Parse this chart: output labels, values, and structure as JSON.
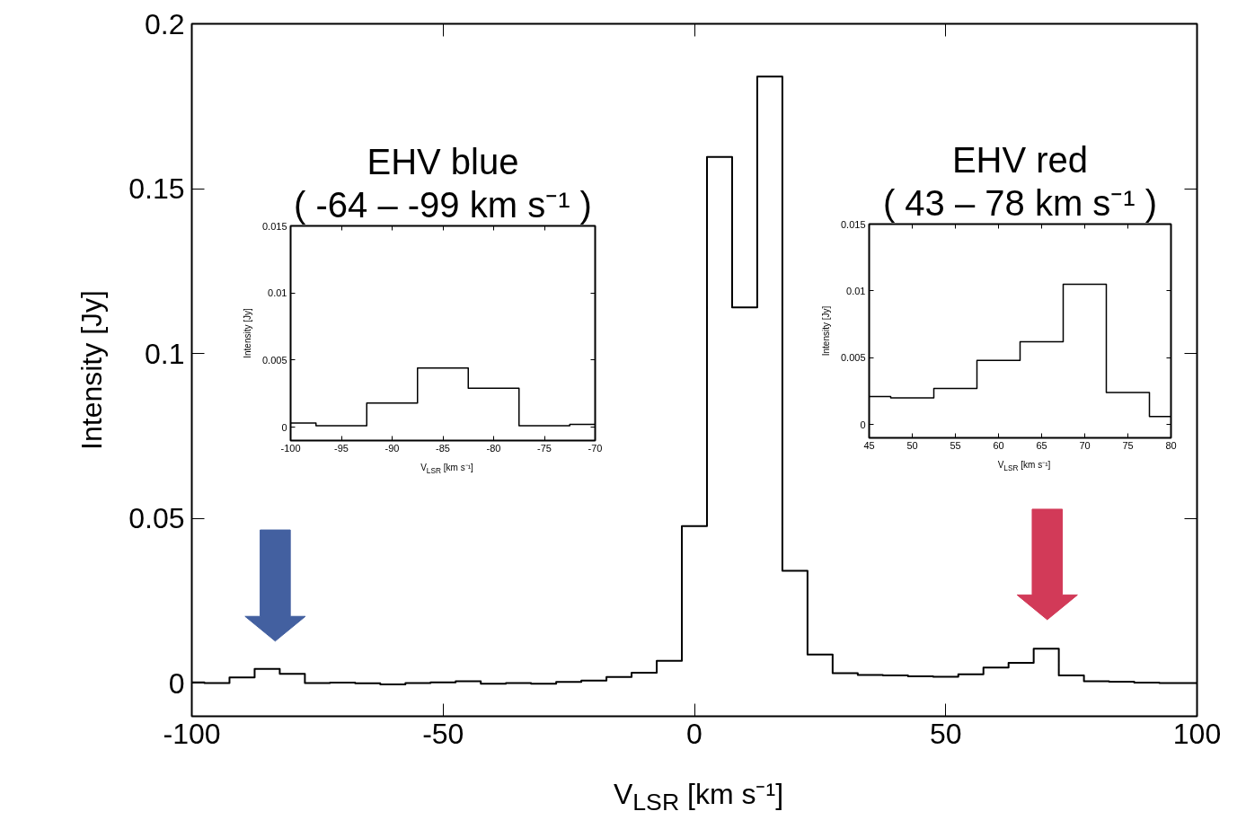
{
  "chart_data": [
    {
      "type": "step",
      "xlabel": "V$_{LSR}$ [km s⁻¹]",
      "ylabel": "Intensity [Jy]",
      "color": "#000000",
      "x": [
        -100,
        -95,
        -90,
        -85,
        -80,
        -75,
        -70,
        -65,
        -60,
        -55,
        -50,
        -45,
        -40,
        -35,
        -30,
        -25,
        -20,
        -15,
        -10,
        -5,
        0,
        5,
        10,
        15,
        20,
        25,
        30,
        35,
        40,
        45,
        50,
        55,
        60,
        65,
        70,
        75,
        80,
        85,
        90,
        95,
        100
      ],
      "values": [
        0.0003,
        0.0001,
        0.0018,
        0.0044,
        0.0029,
        0.0001,
        0.0002,
        0.0,
        -0.0003,
        0.0001,
        0.0003,
        0.0006,
        -0.0001,
        0.0001,
        -0.0001,
        0.0004,
        0.0008,
        0.0019,
        0.0032,
        0.0068,
        0.0477,
        0.1596,
        0.114,
        0.184,
        0.0341,
        0.0087,
        0.0031,
        0.0025,
        0.0024,
        0.0021,
        0.002,
        0.0027,
        0.0048,
        0.0062,
        0.0105,
        0.0024,
        0.0006,
        0.0005,
        0.0002,
        0.0001,
        0.0001
      ],
      "xlim": [
        -100,
        100
      ],
      "ylim": [
        -0.01,
        0.2
      ],
      "xticks": [
        -100,
        -50,
        0,
        50,
        100
      ],
      "yticks": [
        0,
        0.05,
        0.1,
        0.15,
        0.2
      ]
    },
    {
      "type": "step",
      "title": "EHV blue",
      "subtitle": "( -64 – -99 km s⁻¹ )",
      "xlabel": "V$_{LSR}$ [km s⁻¹]",
      "ylabel": "Intensity [Jy]",
      "color": "#000000",
      "x": [
        -100,
        -95,
        -90,
        -85,
        -80,
        -75,
        -70
      ],
      "values": [
        0.0003,
        0.0001,
        0.0018,
        0.0044,
        0.0029,
        0.0001,
        0.0002
      ],
      "xlim": [
        -100,
        -70
      ],
      "ylim": [
        -0.001,
        0.015
      ],
      "xticks": [
        -100,
        -95,
        -90,
        -85,
        -80,
        -75,
        -70
      ],
      "yticks": [
        0,
        0.005,
        0.01,
        0.015
      ]
    },
    {
      "type": "step",
      "title": "EHV red",
      "subtitle": "( 43 – 78 km s⁻¹ )",
      "xlabel": "V$_{LSR}$ [km s⁻¹]",
      "ylabel": "Intensity [Jy]",
      "color": "#000000",
      "x": [
        45,
        50,
        55,
        60,
        65,
        70,
        75,
        80
      ],
      "values": [
        0.0021,
        0.002,
        0.0027,
        0.0048,
        0.0062,
        0.0105,
        0.0024,
        0.0006
      ],
      "xlim": [
        45,
        80
      ],
      "ylim": [
        -0.001,
        0.015
      ],
      "xticks": [
        45,
        50,
        55,
        60,
        65,
        70,
        75,
        80
      ],
      "yticks": [
        0,
        0.005,
        0.01,
        0.015
      ]
    }
  ]
}
